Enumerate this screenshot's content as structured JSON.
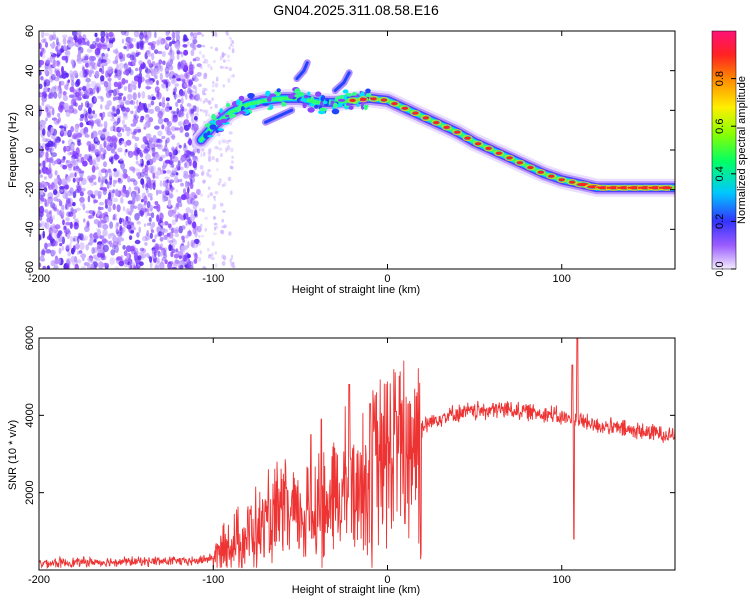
{
  "title": "GN04.2025.311.08.58.E16",
  "colors": {
    "snr_line": "#ee3333",
    "frame": "#000000",
    "scatter_dots": "#7733ff",
    "band_core": "#ff2222"
  },
  "chart_data": [
    {
      "type": "heatmap",
      "name": "spectrogram",
      "xlabel": "Height of straight line (km)",
      "ylabel": "Frequency (Hz)",
      "xlim": [
        -200,
        165
      ],
      "ylim": [
        -60,
        60
      ],
      "xticks": [
        -200,
        -100,
        0,
        100
      ],
      "yticks": [
        -60,
        -40,
        -20,
        0,
        20,
        40,
        60
      ],
      "xtick_labels": [
        "-200",
        "-100",
        "0",
        "100"
      ],
      "ytick_labels": [
        "-60",
        "-40",
        "-20",
        "0",
        "20",
        "40",
        "60"
      ],
      "colorbar": {
        "label": "Normalized spectral amplitude",
        "range": [
          0,
          1
        ],
        "ticks": [
          0,
          0.2,
          0.4,
          0.6,
          0.8
        ],
        "tick_labels": [
          "0.0",
          "0.2",
          "0.4",
          "0.6",
          "0.8"
        ]
      },
      "noise_region_x": [
        -200,
        -108
      ],
      "sparse_noise_x": [
        -108,
        -88
      ],
      "ridge": {
        "x": [
          -107,
          -100,
          -90,
          -80,
          -70,
          -60,
          -50,
          -40,
          -30,
          -20,
          -10,
          0,
          10,
          20,
          30,
          40,
          50,
          60,
          70,
          80,
          90,
          100,
          110,
          120,
          130,
          140,
          150,
          160,
          165
        ],
        "freq": [
          5,
          12,
          19,
          23,
          25,
          26,
          26,
          24,
          24,
          25,
          26,
          25,
          21,
          17,
          13,
          9,
          4,
          0,
          -4,
          -8,
          -12,
          -15,
          -17,
          -19,
          -19,
          -19,
          -19,
          -19,
          -19
        ]
      },
      "side_branches": [
        {
          "x": [
            -70,
            -60,
            -55
          ],
          "freq": [
            14,
            18,
            20
          ]
        },
        {
          "x": [
            -52,
            -48,
            -46
          ],
          "freq": [
            36,
            40,
            44
          ]
        },
        {
          "x": [
            -30,
            -25,
            -22
          ],
          "freq": [
            30,
            34,
            39
          ]
        }
      ]
    },
    {
      "type": "line",
      "name": "snr",
      "xlabel": "Height of straight line (km)",
      "ylabel": "SNR (10 * v/v)",
      "xlim": [
        -200,
        165
      ],
      "ylim": [
        0,
        6000
      ],
      "xticks": [
        -200,
        -100,
        0,
        100
      ],
      "yticks": [
        2000,
        4000,
        6000
      ],
      "xtick_labels": [
        "-200",
        "-100",
        "0",
        "100"
      ],
      "ytick_labels": [
        "2000",
        "4000",
        "6000"
      ],
      "series": [
        {
          "name": "SNR",
          "x": [
            -200,
            -150,
            -110,
            -100,
            -90,
            -80,
            -70,
            -60,
            -50,
            -40,
            -30,
            -20,
            -10,
            0,
            10,
            20,
            30,
            40,
            50,
            60,
            70,
            80,
            90,
            100,
            105,
            110,
            115,
            120,
            140,
            165
          ],
          "values": [
            180,
            220,
            230,
            320,
            650,
            900,
            1150,
            1400,
            1400,
            1550,
            1800,
            2100,
            2500,
            2850,
            3300,
            3700,
            3950,
            4050,
            4100,
            4150,
            4150,
            4100,
            4050,
            3950,
            3900,
            3850,
            3800,
            3750,
            3600,
            3500
          ]
        }
      ],
      "spikes": [
        {
          "x": -44,
          "value": 3500
        },
        {
          "x": -38,
          "value": 3900
        },
        {
          "x": -22,
          "value": 4800
        },
        {
          "x": -10,
          "value": 4300
        },
        {
          "x": 5,
          "value": 4100
        },
        {
          "x": 106,
          "value": 5300
        },
        {
          "x": 109,
          "value": 6000
        }
      ],
      "dips": [
        {
          "x": 107,
          "value": 800
        },
        {
          "x": 10,
          "value": 1200
        }
      ]
    }
  ]
}
